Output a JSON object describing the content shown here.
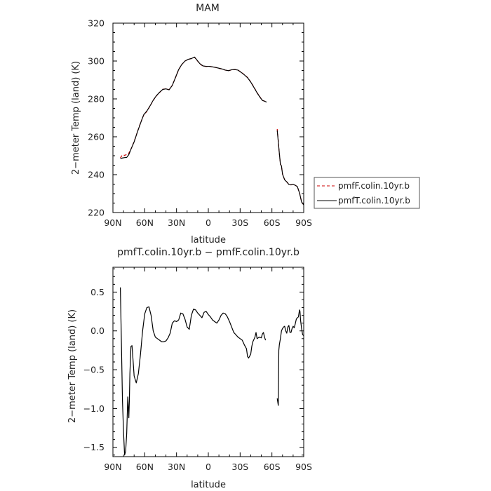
{
  "chart_data": [
    {
      "type": "line",
      "title": "MAM",
      "xlabel": "latitude",
      "ylabel": "2−meter Temp (land) (K)",
      "x_ticks": [
        "90N",
        "60N",
        "30N",
        "0",
        "30S",
        "60S",
        "90S"
      ],
      "y_ticks": [
        "220",
        "240",
        "260",
        "280",
        "300",
        "320"
      ],
      "xlim": [
        90,
        -90
      ],
      "ylim": [
        220,
        320
      ],
      "legend_position": "right",
      "series": [
        {
          "name": "pmfF.colin.10yr.b",
          "color": "#cc0000",
          "dash": "dashed",
          "segments": [
            [
              [
                83,
                248.9
              ],
              [
                81,
                250.4
              ],
              [
                79,
                250.2
              ],
              [
                77,
                250.6
              ],
              [
                75,
                251.4
              ],
              [
                73,
                253.5
              ],
              [
                70,
                257.5
              ],
              [
                67,
                262.5
              ],
              [
                64,
                267.3
              ],
              [
                61,
                271.4
              ],
              [
                58,
                273.4
              ],
              [
                55,
                276.2
              ],
              [
                52,
                279.2
              ],
              [
                49,
                281.6
              ],
              [
                46,
                283.4
              ],
              [
                43,
                285.1
              ],
              [
                40,
                285.3
              ],
              [
                37,
                284.9
              ],
              [
                34,
                287.2
              ],
              [
                31,
                291.2
              ],
              [
                28,
                295.4
              ],
              [
                25,
                298.2
              ],
              [
                22,
                300.0
              ],
              [
                19,
                300.9
              ],
              [
                16,
                301.3
              ],
              [
                13,
                302.0
              ],
              [
                11,
                300.6
              ],
              [
                8,
                298.5
              ],
              [
                5,
                297.3
              ],
              [
                2,
                297.1
              ],
              [
                -1,
                297.2
              ],
              [
                -4,
                296.9
              ],
              [
                -7,
                296.6
              ],
              [
                -10,
                296.1
              ],
              [
                -13,
                295.8
              ],
              [
                -16,
                295.2
              ],
              [
                -19,
                294.9
              ],
              [
                -22,
                295.3
              ],
              [
                -25,
                295.5
              ],
              [
                -28,
                295.2
              ],
              [
                -31,
                294.1
              ],
              [
                -34,
                292.8
              ],
              [
                -37,
                291.3
              ],
              [
                -40,
                289.0
              ],
              [
                -43,
                286.3
              ],
              [
                -46,
                283.3
              ],
              [
                -49,
                280.8
              ],
              [
                -51,
                279.3
              ],
              [
                -53,
                278.8
              ],
              [
                -55,
                278.4
              ]
            ],
            [
              [
                -65,
                264.1
              ],
              [
                -66,
                257.8
              ],
              [
                -67,
                251.2
              ],
              [
                -68,
                245.6
              ],
              [
                -69,
                244.6
              ],
              [
                -70,
                240.3
              ],
              [
                -72,
                237.3
              ],
              [
                -74,
                236.2
              ],
              [
                -76,
                234.8
              ],
              [
                -78,
                234.6
              ],
              [
                -80,
                234.9
              ],
              [
                -82,
                234.4
              ],
              [
                -84,
                233.7
              ],
              [
                -86,
                230.4
              ],
              [
                -88,
                225.6
              ],
              [
                -90,
                224.0
              ]
            ]
          ]
        },
        {
          "name": "pmfT.colin.10yr.b",
          "color": "#000000",
          "dash": "solid",
          "segments": [
            [
              [
                83,
                248.5
              ],
              [
                81,
                248.8
              ],
              [
                79,
                249.0
              ],
              [
                77,
                249.1
              ],
              [
                75,
                250.6
              ],
              [
                73,
                253.4
              ],
              [
                70,
                257.3
              ],
              [
                67,
                262.4
              ],
              [
                64,
                267.1
              ],
              [
                61,
                271.6
              ],
              [
                58,
                273.6
              ],
              [
                55,
                276.3
              ],
              [
                52,
                279.3
              ],
              [
                49,
                281.7
              ],
              [
                46,
                283.5
              ],
              [
                43,
                285.0
              ],
              [
                40,
                285.3
              ],
              [
                37,
                284.8
              ],
              [
                34,
                287.1
              ],
              [
                31,
                291.3
              ],
              [
                28,
                295.5
              ],
              [
                25,
                298.2
              ],
              [
                22,
                300.0
              ],
              [
                19,
                300.9
              ],
              [
                16,
                301.3
              ],
              [
                13,
                302.1
              ],
              [
                11,
                300.7
              ],
              [
                8,
                298.6
              ],
              [
                5,
                297.4
              ],
              [
                2,
                297.2
              ],
              [
                -1,
                297.2
              ],
              [
                -4,
                296.9
              ],
              [
                -7,
                296.6
              ],
              [
                -10,
                296.2
              ],
              [
                -13,
                295.8
              ],
              [
                -16,
                295.2
              ],
              [
                -19,
                294.9
              ],
              [
                -22,
                295.4
              ],
              [
                -25,
                295.5
              ],
              [
                -28,
                295.2
              ],
              [
                -31,
                294.0
              ],
              [
                -34,
                292.7
              ],
              [
                -37,
                291.2
              ],
              [
                -40,
                288.9
              ],
              [
                -43,
                286.1
              ],
              [
                -46,
                283.2
              ],
              [
                -49,
                280.7
              ],
              [
                -51,
                279.2
              ],
              [
                -53,
                278.8
              ],
              [
                -55,
                278.3
              ]
            ],
            [
              [
                -65,
                263.3
              ],
              [
                -66,
                257.5
              ],
              [
                -67,
                251.3
              ],
              [
                -68,
                245.5
              ],
              [
                -69,
                244.6
              ],
              [
                -70,
                240.3
              ],
              [
                -72,
                237.3
              ],
              [
                -74,
                236.2
              ],
              [
                -76,
                234.8
              ],
              [
                -78,
                234.6
              ],
              [
                -80,
                234.9
              ],
              [
                -82,
                234.4
              ],
              [
                -84,
                233.7
              ],
              [
                -86,
                230.4
              ],
              [
                -88,
                225.6
              ],
              [
                -90,
                224.0
              ]
            ]
          ]
        }
      ]
    },
    {
      "type": "line",
      "title": "pmfT.colin.10yr.b − pmfF.colin.10yr.b",
      "xlabel": "latitude",
      "ylabel": "2−meter Temp (land) (K)",
      "x_ticks": [
        "90N",
        "60N",
        "30N",
        "0",
        "30S",
        "60S",
        "90S"
      ],
      "y_ticks": [
        "−1.5",
        "−1.0",
        "−0.5",
        "0.0",
        "0.5"
      ],
      "y_tick_values": [
        -1.5,
        -1.0,
        -0.5,
        0.0,
        0.5
      ],
      "xlim": [
        90,
        -90
      ],
      "ylim": [
        -1.62,
        0.82
      ],
      "series": [
        {
          "name": "",
          "color": "#000000",
          "dash": "solid",
          "segments": [
            [
              [
                83,
                0.56
              ],
              [
                82,
                -0.15
              ],
              [
                81,
                -0.9
              ],
              [
                80,
                -1.3
              ],
              [
                79,
                -1.6
              ],
              [
                78,
                -1.55
              ],
              [
                77,
                -1.32
              ],
              [
                76,
                -0.85
              ],
              [
                75,
                -1.12
              ],
              [
                74.5,
                -0.9
              ],
              [
                74,
                -0.55
              ],
              [
                73,
                -0.2
              ],
              [
                72,
                -0.19
              ],
              [
                71,
                -0.38
              ],
              [
                70,
                -0.58
              ],
              [
                68,
                -0.67
              ],
              [
                66,
                -0.55
              ],
              [
                64,
                -0.3
              ],
              [
                62,
                0.0
              ],
              [
                60,
                0.22
              ],
              [
                58,
                0.3
              ],
              [
                56,
                0.31
              ],
              [
                54,
                0.2
              ],
              [
                52,
                0.0
              ],
              [
                50,
                -0.08
              ],
              [
                48,
                -0.1
              ],
              [
                46,
                -0.12
              ],
              [
                44,
                -0.14
              ],
              [
                42,
                -0.14
              ],
              [
                40,
                -0.13
              ],
              [
                38,
                -0.09
              ],
              [
                36,
                -0.03
              ],
              [
                34,
                0.1
              ],
              [
                32,
                0.13
              ],
              [
                30,
                0.12
              ],
              [
                28,
                0.14
              ],
              [
                26,
                0.23
              ],
              [
                24,
                0.22
              ],
              [
                22,
                0.15
              ],
              [
                20,
                0.05
              ],
              [
                18,
                0.02
              ],
              [
                16,
                0.2
              ],
              [
                14,
                0.28
              ],
              [
                12,
                0.27
              ],
              [
                10,
                0.23
              ],
              [
                8,
                0.2
              ],
              [
                6,
                0.17
              ],
              [
                4,
                0.24
              ],
              [
                2,
                0.25
              ],
              [
                0,
                0.21
              ],
              [
                -2,
                0.18
              ],
              [
                -4,
                0.14
              ],
              [
                -6,
                0.12
              ],
              [
                -8,
                0.1
              ],
              [
                -10,
                0.14
              ],
              [
                -12,
                0.2
              ],
              [
                -14,
                0.23
              ],
              [
                -16,
                0.22
              ],
              [
                -18,
                0.18
              ],
              [
                -20,
                0.12
              ],
              [
                -22,
                0.05
              ],
              [
                -24,
                -0.02
              ],
              [
                -26,
                -0.05
              ],
              [
                -28,
                -0.08
              ],
              [
                -30,
                -0.1
              ],
              [
                -32,
                -0.12
              ],
              [
                -34,
                -0.18
              ],
              [
                -36,
                -0.23
              ],
              [
                -37,
                -0.33
              ],
              [
                -38,
                -0.35
              ],
              [
                -40,
                -0.3
              ],
              [
                -41,
                -0.2
              ],
              [
                -42,
                -0.14
              ],
              [
                -44,
                -0.08
              ],
              [
                -45,
                -0.02
              ],
              [
                -46,
                -0.1
              ],
              [
                -48,
                -0.08
              ],
              [
                -50,
                -0.09
              ],
              [
                -51,
                -0.04
              ],
              [
                -52,
                -0.02
              ],
              [
                -53,
                -0.08
              ],
              [
                -54,
                -0.12
              ]
            ],
            [
              [
                -65,
                -0.87
              ],
              [
                -66,
                -0.96
              ],
              [
                -66.5,
                -0.25
              ],
              [
                -67,
                -0.18
              ],
              [
                -68,
                -0.1
              ],
              [
                -69,
                0.0
              ],
              [
                -70,
                0.03
              ],
              [
                -71,
                0.05
              ],
              [
                -72,
                0.06
              ],
              [
                -73,
                0.0
              ],
              [
                -74,
                -0.03
              ],
              [
                -75,
                0.05
              ],
              [
                -76,
                0.07
              ],
              [
                -77,
                -0.02
              ],
              [
                -78,
                -0.02
              ],
              [
                -79,
                0.03
              ],
              [
                -80,
                0.06
              ],
              [
                -81,
                0.04
              ],
              [
                -82,
                0.09
              ],
              [
                -83,
                0.15
              ],
              [
                -84,
                0.17
              ],
              [
                -85,
                0.18
              ],
              [
                -86,
                0.27
              ],
              [
                -86.5,
                0.25
              ],
              [
                -87,
                0.14
              ],
              [
                -88,
                0.03
              ],
              [
                -89,
                -0.05
              ],
              [
                -90,
                -0.06
              ]
            ]
          ]
        }
      ]
    }
  ]
}
